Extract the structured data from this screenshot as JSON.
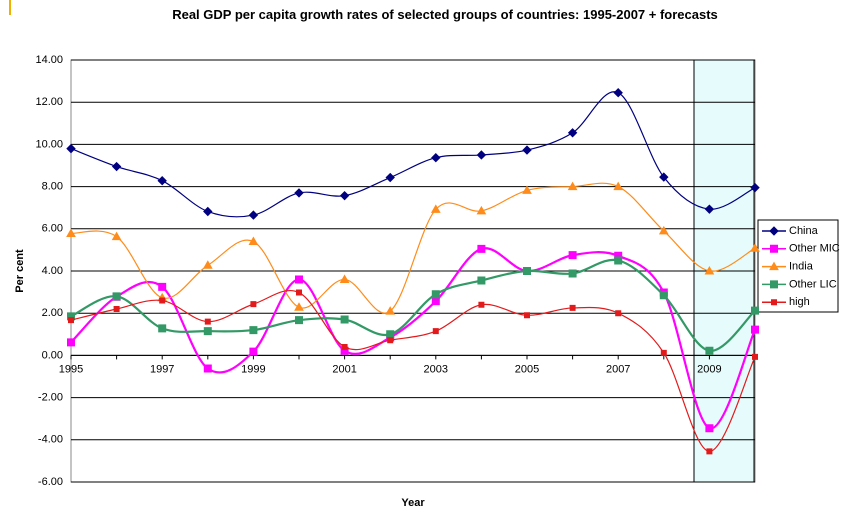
{
  "chart_data": {
    "type": "line",
    "smooth": true,
    "title": "Real GDP per capita growth rates of selected groups of countries: 1995-2007 + forecasts",
    "y_label": "Per cent",
    "x_label": "Year",
    "categories": [
      "1995",
      null,
      "1997",
      null,
      "1999",
      null,
      "2001",
      null,
      "2003",
      null,
      "2005",
      null,
      "2007",
      null,
      "2009",
      null
    ],
    "ylim": [
      -6,
      14
    ],
    "yticks": [
      {
        "value": -6,
        "label": "-6.00"
      },
      {
        "value": -4,
        "label": "-4.00"
      },
      {
        "value": -2,
        "label": "-2.00"
      },
      {
        "value": 0,
        "label": "0.00"
      },
      {
        "value": 2,
        "label": "2.00"
      },
      {
        "value": 4,
        "label": "4.00"
      },
      {
        "value": 6,
        "label": "6.00"
      },
      {
        "value": 8,
        "label": "8.00"
      },
      {
        "value": 10,
        "label": "10.00"
      },
      {
        "value": 12,
        "label": "12.00"
      },
      {
        "value": 14,
        "label": "14.00"
      }
    ],
    "grid": true,
    "legend": "right",
    "series": [
      {
        "name": "China",
        "color": "#000080",
        "marker": "diamond",
        "values": [
          9.8,
          8.95,
          8.28,
          6.82,
          6.65,
          7.7,
          7.57,
          8.43,
          9.37,
          9.5,
          9.73,
          10.55,
          12.45,
          8.45,
          6.93,
          7.95
        ]
      },
      {
        "name": "Other MIC",
        "color": "#ff00ff",
        "marker": "square",
        "values": [
          0.62,
          2.78,
          3.25,
          -0.62,
          0.18,
          3.6,
          0.22,
          0.85,
          2.57,
          5.05,
          4.0,
          4.75,
          4.72,
          2.98,
          -3.45,
          1.22
        ]
      },
      {
        "name": "India",
        "color": "#ff8c1a",
        "marker": "triangle",
        "values": [
          5.78,
          5.63,
          2.73,
          4.27,
          5.4,
          2.28,
          3.6,
          2.1,
          6.92,
          6.85,
          7.82,
          8.0,
          8.0,
          5.9,
          4.0,
          5.08
        ]
      },
      {
        "name": "Other LIC",
        "color": "#339966",
        "marker": "square",
        "values": [
          1.85,
          2.8,
          1.28,
          1.15,
          1.2,
          1.67,
          1.7,
          1.0,
          2.9,
          3.55,
          4.0,
          3.88,
          4.5,
          2.85,
          0.22,
          2.12
        ]
      },
      {
        "name": "high",
        "color": "#e31a1c",
        "marker": "square-small",
        "values": [
          1.67,
          2.2,
          2.6,
          1.6,
          2.43,
          2.98,
          0.4,
          0.72,
          1.15,
          2.4,
          1.9,
          2.25,
          2.0,
          0.12,
          -4.55,
          -0.07
        ]
      }
    ]
  }
}
